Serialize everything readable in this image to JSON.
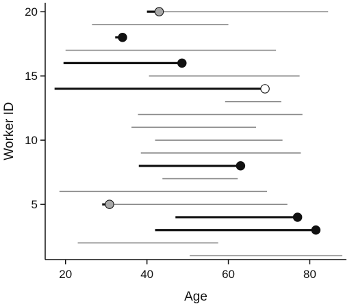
{
  "chart_data": {
    "type": "line",
    "title": "",
    "xlabel": "Age",
    "ylabel": "Worker ID",
    "xlim": [
      15,
      89
    ],
    "ylim": [
      0.7,
      20.7
    ],
    "xticks": [
      20,
      40,
      60,
      80
    ],
    "yticks": [
      5,
      10,
      15,
      20
    ],
    "grid": false,
    "legend": "none",
    "colors": {
      "thick": "#111111",
      "thin": "#8a8a8a",
      "point_black": "#111111",
      "point_gray": "#a8a8a8",
      "point_white": "#ffffff"
    },
    "workers": [
      {
        "id": 1,
        "start": 50.5,
        "end": 88.0
      },
      {
        "id": 2,
        "start": 23.0,
        "end": 57.5
      },
      {
        "id": 3,
        "start": 42.0,
        "end": 81.5,
        "event_age": 81.5,
        "marker": "black"
      },
      {
        "id": 4,
        "start": 47.0,
        "end": 77.0,
        "event_age": 77.0,
        "marker": "black"
      },
      {
        "id": 5,
        "start": 29.0,
        "end": 74.5,
        "event_age": 30.8,
        "marker": "gray"
      },
      {
        "id": 6,
        "start": 18.5,
        "end": 69.5
      },
      {
        "id": 7,
        "start": 43.8,
        "end": 62.3
      },
      {
        "id": 8,
        "start": 38.0,
        "end": 63.0,
        "event_age": 63.0,
        "marker": "black"
      },
      {
        "id": 9,
        "start": 38.5,
        "end": 77.8
      },
      {
        "id": 10,
        "start": 42.0,
        "end": 73.3
      },
      {
        "id": 11,
        "start": 36.2,
        "end": 66.8
      },
      {
        "id": 12,
        "start": 37.8,
        "end": 78.2
      },
      {
        "id": 13,
        "start": 59.2,
        "end": 73.0
      },
      {
        "id": 14,
        "start": 17.3,
        "end": 69.0,
        "event_age": 69.0,
        "marker": "white"
      },
      {
        "id": 15,
        "start": 40.5,
        "end": 77.5
      },
      {
        "id": 16,
        "start": 19.5,
        "end": 48.6,
        "event_age": 48.6,
        "marker": "black"
      },
      {
        "id": 17,
        "start": 20.0,
        "end": 71.7
      },
      {
        "id": 18,
        "start": 32.2,
        "end": 34.0,
        "event_age": 34.0,
        "marker": "black"
      },
      {
        "id": 19,
        "start": 26.5,
        "end": 60.0
      },
      {
        "id": 20,
        "start": 40.0,
        "end": 84.5,
        "event_age": 43.0,
        "marker": "gray"
      }
    ]
  }
}
